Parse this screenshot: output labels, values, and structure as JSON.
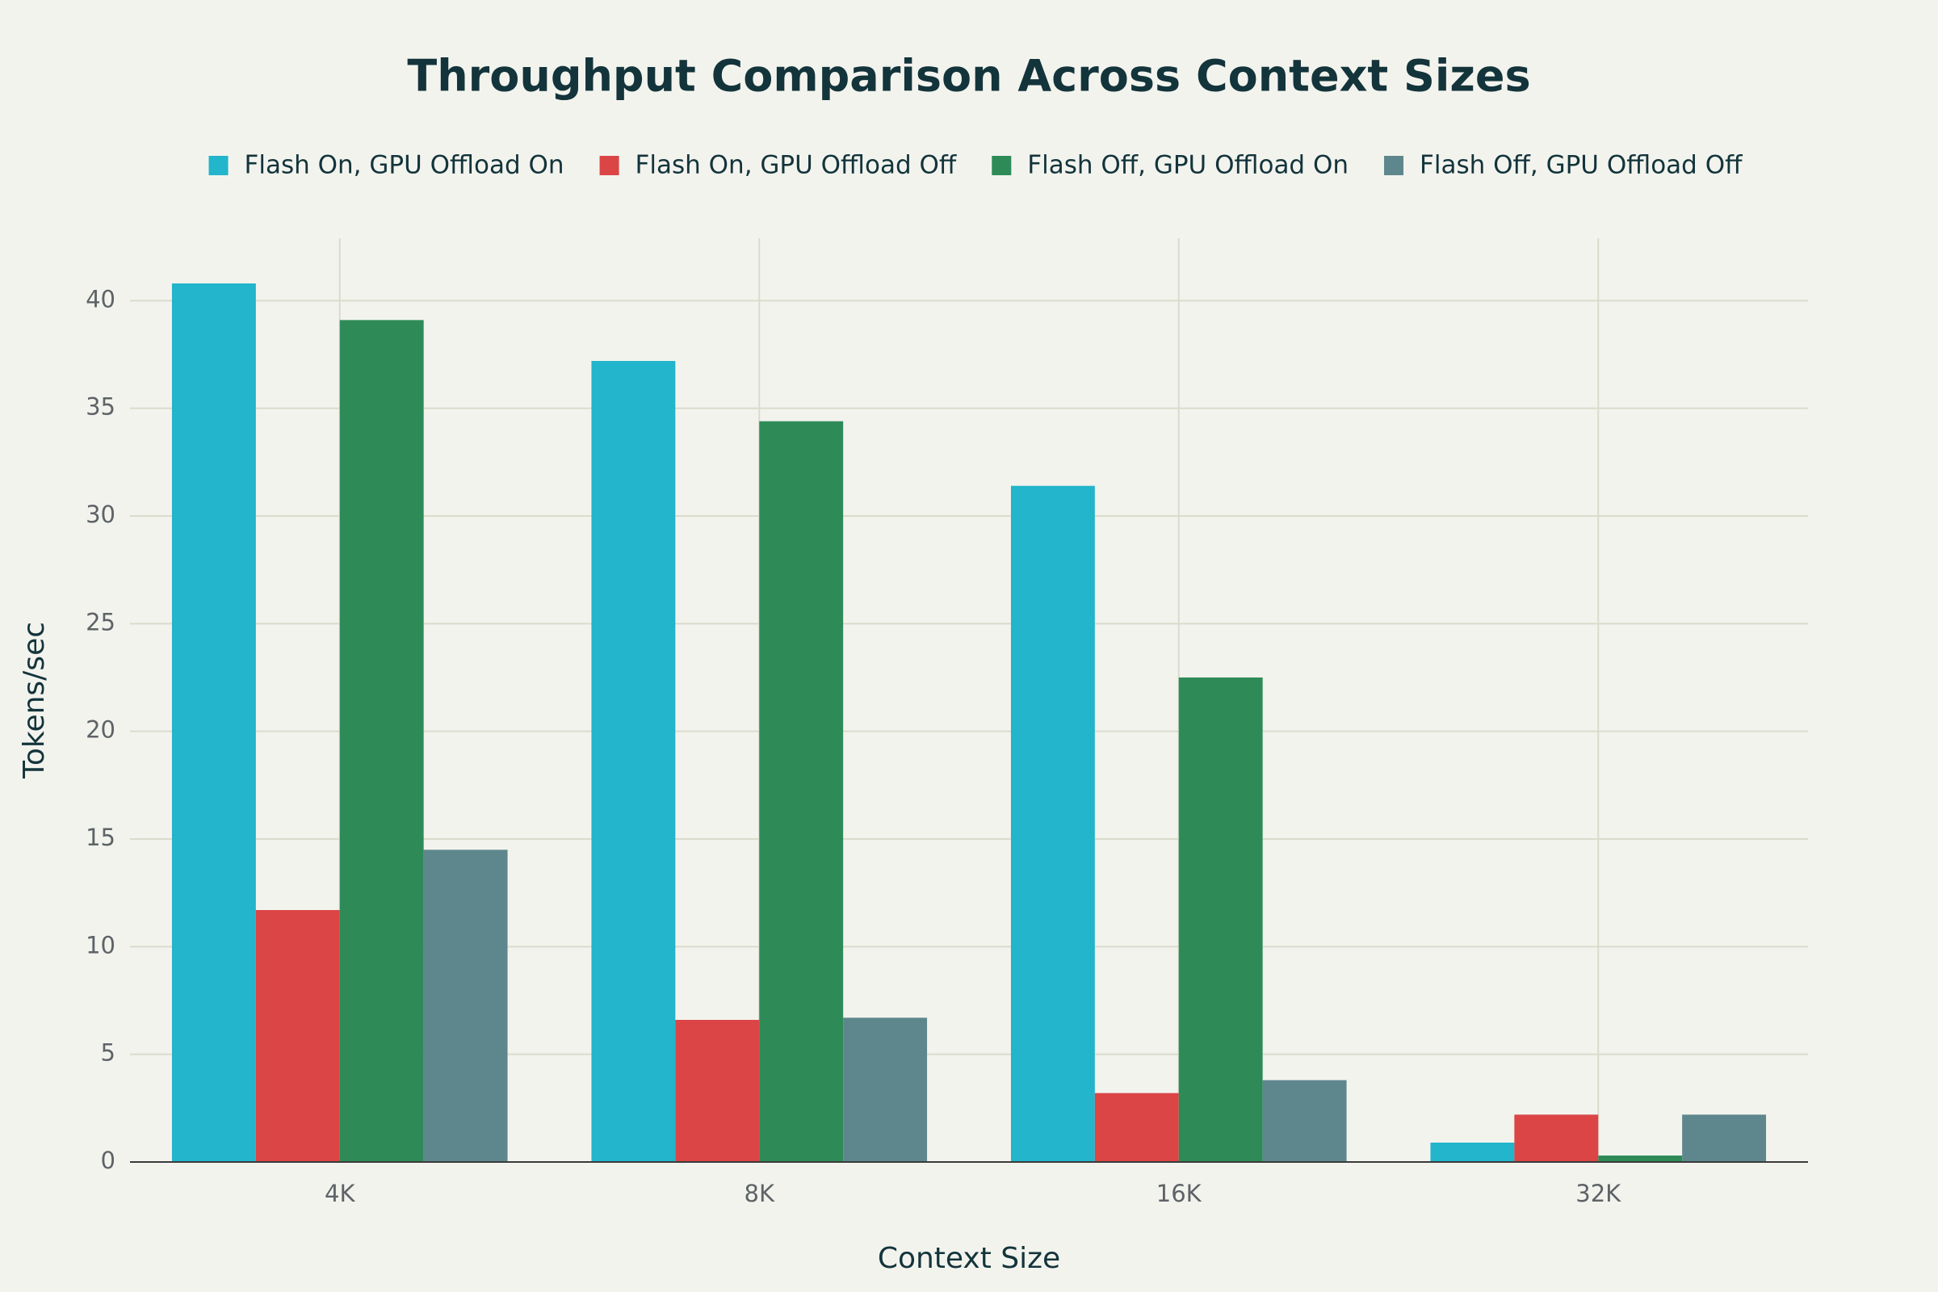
{
  "chart_data": {
    "type": "bar",
    "title": "Throughput Comparison Across Context Sizes",
    "x_label": "Context Size",
    "y_label": "Tokens/sec",
    "categories": [
      "4K",
      "8K",
      "16K",
      "32K"
    ],
    "series": [
      {
        "name": "Flash On, GPU Offload On",
        "color": "#22b5cb",
        "values": [
          40.8,
          37.2,
          31.4,
          0.9
        ]
      },
      {
        "name": "Flash On, GPU Offload Off",
        "color": "#db4545",
        "values": [
          11.7,
          6.6,
          3.2,
          2.2
        ]
      },
      {
        "name": "Flash Off, GPU Offload On",
        "color": "#2e8b57",
        "values": [
          39.1,
          34.4,
          22.5,
          0.3
        ]
      },
      {
        "name": "Flash Off, GPU Offload Off",
        "color": "#5e878d",
        "values": [
          14.5,
          6.7,
          3.8,
          2.2
        ]
      }
    ],
    "ylim": [
      0,
      42.9
    ],
    "yticks": [
      0,
      5,
      10,
      15,
      20,
      25,
      30,
      35,
      40
    ],
    "grid": true
  }
}
